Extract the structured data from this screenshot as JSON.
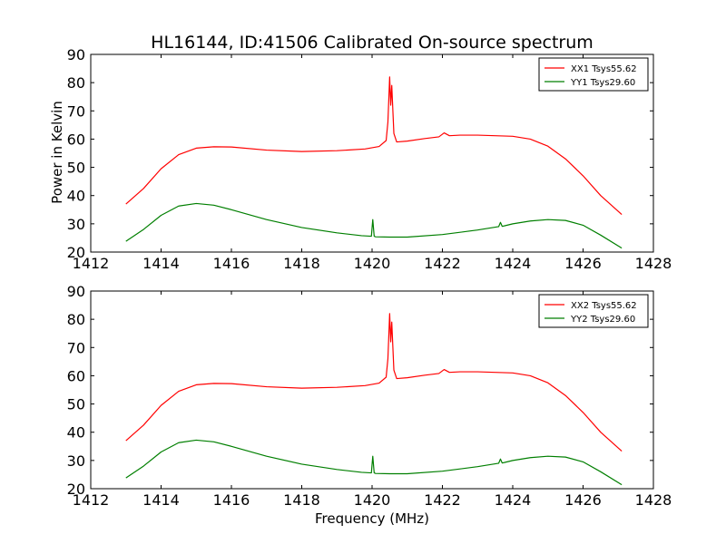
{
  "title": "HL16144, ID:41506 Calibrated On-source spectrum",
  "xlabel": "Frequency (MHz)",
  "ylabel": "Power in Kelvin",
  "chart_data": [
    {
      "type": "line",
      "xlim": [
        1412,
        1428
      ],
      "ylim": [
        20,
        90
      ],
      "xticks": [
        1412,
        1414,
        1416,
        1418,
        1420,
        1422,
        1424,
        1426,
        1428
      ],
      "yticks": [
        20,
        30,
        40,
        50,
        60,
        70,
        80,
        90
      ],
      "legend_position": "top-right",
      "series": [
        {
          "name": "XX1 Tsys55.62",
          "color": "#ff0000",
          "x": [
            1413.0,
            1413.5,
            1414.0,
            1414.5,
            1415.0,
            1415.5,
            1416.0,
            1417.0,
            1418.0,
            1419.0,
            1419.8,
            1420.2,
            1420.4,
            1420.45,
            1420.5,
            1420.53,
            1420.56,
            1420.62,
            1420.7,
            1421.0,
            1421.5,
            1421.9,
            1422.05,
            1422.2,
            1422.5,
            1423.0,
            1424.0,
            1424.5,
            1425.0,
            1425.5,
            1426.0,
            1426.5,
            1427.1
          ],
          "y": [
            37,
            42.5,
            49.5,
            54.5,
            56.8,
            57.3,
            57.2,
            56.1,
            55.6,
            55.9,
            56.5,
            57.4,
            59.5,
            66,
            82,
            72,
            79,
            62,
            59,
            59.3,
            60.2,
            60.8,
            62.2,
            61.2,
            61.4,
            61.4,
            61,
            60,
            57.5,
            53,
            47,
            40,
            33.3
          ]
        },
        {
          "name": "YY1 Tsys29.60",
          "color": "#007f00",
          "x": [
            1413.0,
            1413.5,
            1414.0,
            1414.5,
            1415.0,
            1415.5,
            1416.0,
            1417.0,
            1418.0,
            1419.0,
            1419.7,
            1419.98,
            1420.02,
            1420.06,
            1420.1,
            1420.5,
            1421.0,
            1422.0,
            1423.0,
            1423.6,
            1423.65,
            1423.7,
            1423.8,
            1424.0,
            1424.5,
            1425.0,
            1425.5,
            1426.0,
            1426.5,
            1427.1
          ],
          "y": [
            23.8,
            28,
            33,
            36.3,
            37.2,
            36.6,
            35,
            31.5,
            28.7,
            26.8,
            25.8,
            25.6,
            31.5,
            25.6,
            25.4,
            25.3,
            25.3,
            26.2,
            27.8,
            29,
            30.5,
            29.1,
            29.4,
            30,
            31,
            31.5,
            31.2,
            29.5,
            26,
            21.4
          ]
        }
      ]
    },
    {
      "type": "line",
      "xlim": [
        1412,
        1428
      ],
      "ylim": [
        20,
        90
      ],
      "xticks": [
        1412,
        1414,
        1416,
        1418,
        1420,
        1422,
        1424,
        1426,
        1428
      ],
      "yticks": [
        20,
        30,
        40,
        50,
        60,
        70,
        80,
        90
      ],
      "legend_position": "top-right",
      "series": [
        {
          "name": "XX2 Tsys55.62",
          "color": "#ff0000",
          "x": [
            1413.0,
            1413.5,
            1414.0,
            1414.5,
            1415.0,
            1415.5,
            1416.0,
            1417.0,
            1418.0,
            1419.0,
            1419.8,
            1420.2,
            1420.4,
            1420.45,
            1420.5,
            1420.53,
            1420.56,
            1420.62,
            1420.7,
            1421.0,
            1421.5,
            1421.9,
            1422.05,
            1422.2,
            1422.5,
            1423.0,
            1424.0,
            1424.5,
            1425.0,
            1425.5,
            1426.0,
            1426.5,
            1427.1
          ],
          "y": [
            37,
            42.5,
            49.5,
            54.5,
            56.8,
            57.3,
            57.2,
            56.1,
            55.6,
            55.9,
            56.5,
            57.4,
            59.5,
            66,
            82,
            72,
            79,
            62,
            59,
            59.3,
            60.2,
            60.8,
            62.2,
            61.2,
            61.4,
            61.4,
            61,
            60,
            57.5,
            53,
            47,
            40,
            33.3
          ]
        },
        {
          "name": "YY2 Tsys29.60",
          "color": "#007f00",
          "x": [
            1413.0,
            1413.5,
            1414.0,
            1414.5,
            1415.0,
            1415.5,
            1416.0,
            1417.0,
            1418.0,
            1419.0,
            1419.7,
            1419.98,
            1420.02,
            1420.06,
            1420.1,
            1420.5,
            1421.0,
            1422.0,
            1423.0,
            1423.6,
            1423.65,
            1423.7,
            1423.8,
            1424.0,
            1424.5,
            1425.0,
            1425.5,
            1426.0,
            1426.5,
            1427.1
          ],
          "y": [
            23.8,
            28,
            33,
            36.3,
            37.2,
            36.6,
            35,
            31.5,
            28.7,
            26.8,
            25.8,
            25.6,
            31.5,
            25.6,
            25.4,
            25.3,
            25.3,
            26.2,
            27.8,
            29,
            30.5,
            29.1,
            29.4,
            30,
            31,
            31.5,
            31.2,
            29.5,
            26,
            21.4
          ]
        }
      ]
    }
  ]
}
